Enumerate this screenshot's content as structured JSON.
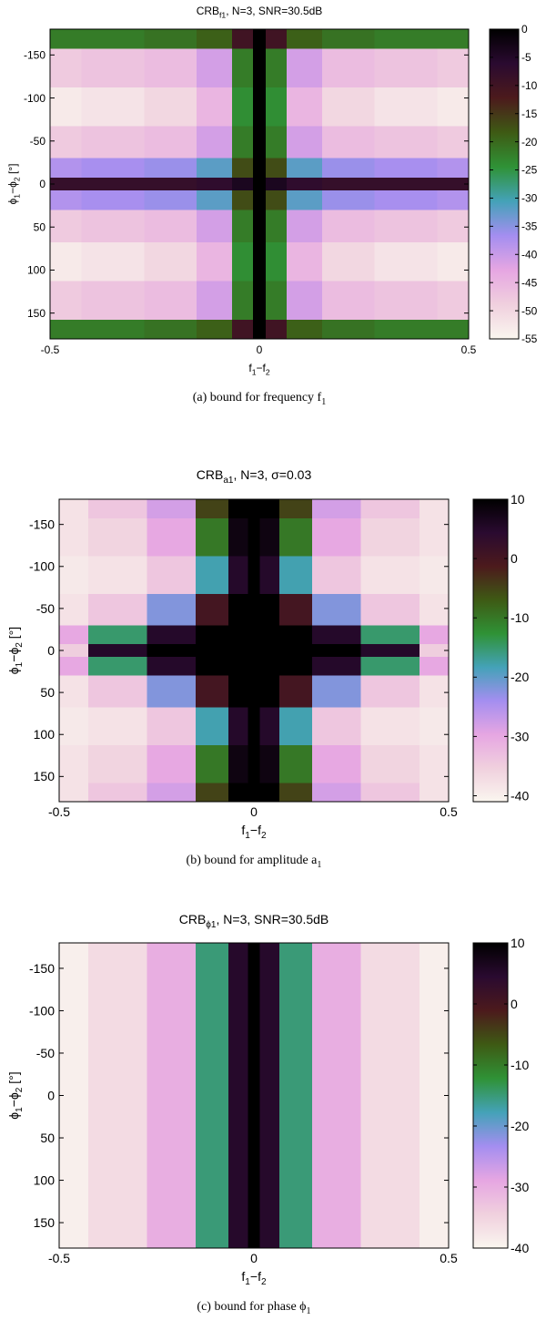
{
  "chart_data": [
    {
      "type": "heatmap",
      "title": [
        "CRB",
        "f1",
        ", N=3, SNR=30.5dB"
      ],
      "xlabel": [
        "f",
        "1",
        "−f",
        "2"
      ],
      "ylabel": [
        "ϕ",
        "1",
        "−ϕ",
        "2",
        " [°]"
      ],
      "caption": [
        "(a) bound for frequency f",
        "1"
      ],
      "x": [
        -0.5,
        -0.35,
        -0.2,
        -0.1,
        -0.03,
        0,
        0.03,
        0.1,
        0.2,
        0.35,
        0.5
      ],
      "y": [
        -180,
        -135,
        -90,
        -45,
        -15,
        0,
        15,
        45,
        90,
        135,
        180
      ],
      "z": [
        [
          -22,
          -22,
          -21,
          -19,
          -10,
          0,
          -10,
          -19,
          -21,
          -22,
          -22
        ],
        [
          -48,
          -47,
          -46,
          -41,
          -22,
          0,
          -22,
          -41,
          -46,
          -47,
          -48
        ],
        [
          -53,
          -52,
          -50,
          -45,
          -24,
          0,
          -24,
          -45,
          -50,
          -52,
          -53
        ],
        [
          -48,
          -47,
          -46,
          -41,
          -22,
          0,
          -22,
          -41,
          -46,
          -47,
          -48
        ],
        [
          -38,
          -37,
          -36,
          -32,
          -17,
          0,
          -17,
          -32,
          -36,
          -37,
          -38
        ],
        [
          -8,
          -8,
          -8,
          -7,
          -4,
          0,
          -4,
          -7,
          -8,
          -8,
          -8
        ],
        [
          -38,
          -37,
          -36,
          -32,
          -17,
          0,
          -17,
          -32,
          -36,
          -37,
          -38
        ],
        [
          -48,
          -47,
          -46,
          -41,
          -22,
          0,
          -22,
          -41,
          -46,
          -47,
          -48
        ],
        [
          -53,
          -52,
          -50,
          -45,
          -24,
          0,
          -24,
          -45,
          -50,
          -52,
          -53
        ],
        [
          -48,
          -47,
          -46,
          -41,
          -22,
          0,
          -22,
          -41,
          -46,
          -47,
          -48
        ],
        [
          -22,
          -22,
          -21,
          -19,
          -10,
          0,
          -10,
          -19,
          -21,
          -22,
          -22
        ]
      ],
      "xlim": [
        -0.5,
        0.5
      ],
      "xticks": [
        -0.5,
        0,
        0.5
      ],
      "ylim": [
        -180,
        180
      ],
      "yticks": [
        -150,
        -100,
        -50,
        0,
        50,
        100,
        150
      ],
      "y_inverted": true,
      "zlim": [
        -55,
        0
      ],
      "zticks": [
        0,
        -5,
        -10,
        -15,
        -20,
        -25,
        -30,
        -35,
        -40,
        -45,
        -50,
        -55
      ],
      "colormap": [
        "#faf6ef",
        "#f0d0de",
        "#e6a6e2",
        "#a48ef0",
        "#44a2b8",
        "#2f9236",
        "#3e5a14",
        "#4c1a1c",
        "#2a0a30",
        "#000000"
      ]
    },
    {
      "type": "heatmap",
      "title": [
        "CRB",
        "a1",
        ", N=3, σ=0.03"
      ],
      "xlabel": [
        "f",
        "1",
        "−f",
        "2"
      ],
      "ylabel": [
        "ϕ",
        "1",
        "−ϕ",
        "2",
        " [°]"
      ],
      "caption": [
        "(b) bound for amplitude a",
        "1"
      ],
      "x": [
        -0.5,
        -0.35,
        -0.2,
        -0.1,
        -0.03,
        0,
        0.03,
        0.1,
        0.2,
        0.35,
        0.5
      ],
      "y": [
        -180,
        -135,
        -90,
        -45,
        -15,
        0,
        15,
        45,
        90,
        135,
        180
      ],
      "z": [
        [
          -38,
          -34,
          -28,
          -5,
          10,
          10,
          10,
          -5,
          -28,
          -34,
          -38
        ],
        [
          -38,
          -36,
          -30,
          -10,
          8,
          10,
          8,
          -10,
          -30,
          -36,
          -38
        ],
        [
          -39,
          -38,
          -34,
          -18,
          5,
          10,
          5,
          -18,
          -34,
          -38,
          -39
        ],
        [
          -38,
          -34,
          -22,
          0,
          10,
          10,
          10,
          0,
          -22,
          -34,
          -38
        ],
        [
          -30,
          -15,
          5,
          10,
          10,
          10,
          10,
          10,
          5,
          -15,
          -30
        ],
        [
          -35,
          5,
          10,
          10,
          10,
          10,
          10,
          10,
          10,
          5,
          -35
        ],
        [
          -30,
          -15,
          5,
          10,
          10,
          10,
          10,
          10,
          5,
          -15,
          -30
        ],
        [
          -38,
          -34,
          -22,
          0,
          10,
          10,
          10,
          0,
          -22,
          -34,
          -38
        ],
        [
          -39,
          -38,
          -34,
          -18,
          5,
          10,
          5,
          -18,
          -34,
          -38,
          -39
        ],
        [
          -38,
          -36,
          -30,
          -10,
          8,
          10,
          8,
          -10,
          -30,
          -36,
          -38
        ],
        [
          -38,
          -34,
          -28,
          -5,
          10,
          10,
          10,
          -5,
          -28,
          -34,
          -38
        ]
      ],
      "xlim": [
        -0.5,
        0.5
      ],
      "xticks": [
        -0.5,
        0,
        0.5
      ],
      "ylim": [
        -180,
        180
      ],
      "yticks": [
        -150,
        -100,
        -50,
        0,
        50,
        100,
        150
      ],
      "y_inverted": true,
      "zlim": [
        -41,
        10
      ],
      "zticks": [
        10,
        0,
        -10,
        -20,
        -30,
        -40
      ],
      "colormap": [
        "#faf6ef",
        "#f0d0de",
        "#e6a6e2",
        "#a48ef0",
        "#44a2b8",
        "#2f9236",
        "#3e5a14",
        "#4c1a1c",
        "#2a0a30",
        "#000000"
      ]
    },
    {
      "type": "heatmap",
      "title": [
        "CRB",
        "ϕ1",
        ", N=3, SNR=30.5dB"
      ],
      "xlabel": [
        "f",
        "1",
        "−f",
        "2"
      ],
      "ylabel": [
        "ϕ",
        "1",
        "−ϕ",
        "2",
        " [°]"
      ],
      "caption": [
        "(c) bound for phase ϕ",
        "1"
      ],
      "x": [
        -0.5,
        -0.35,
        -0.2,
        -0.1,
        -0.03,
        0,
        0.03,
        0.1,
        0.2,
        0.35,
        0.5
      ],
      "y": [
        -180,
        -135,
        -90,
        -45,
        -15,
        0,
        15,
        45,
        90,
        135,
        180
      ],
      "z": [
        [
          -39,
          -36,
          -30,
          -15,
          5,
          10,
          5,
          -15,
          -30,
          -36,
          -39
        ],
        [
          -39,
          -36,
          -30,
          -15,
          5,
          10,
          5,
          -15,
          -30,
          -36,
          -39
        ],
        [
          -39,
          -36,
          -30,
          -15,
          5,
          10,
          5,
          -15,
          -30,
          -36,
          -39
        ],
        [
          -39,
          -36,
          -30,
          -15,
          5,
          10,
          5,
          -15,
          -30,
          -36,
          -39
        ],
        [
          -39,
          -36,
          -30,
          -15,
          5,
          10,
          5,
          -15,
          -30,
          -36,
          -39
        ],
        [
          -39,
          -36,
          -30,
          -15,
          5,
          10,
          5,
          -15,
          -30,
          -36,
          -39
        ],
        [
          -39,
          -36,
          -30,
          -15,
          5,
          10,
          5,
          -15,
          -30,
          -36,
          -39
        ],
        [
          -39,
          -36,
          -30,
          -15,
          5,
          10,
          5,
          -15,
          -30,
          -36,
          -39
        ],
        [
          -39,
          -36,
          -30,
          -15,
          5,
          10,
          5,
          -15,
          -30,
          -36,
          -39
        ],
        [
          -39,
          -36,
          -30,
          -15,
          5,
          10,
          5,
          -15,
          -30,
          -36,
          -39
        ],
        [
          -39,
          -36,
          -30,
          -15,
          5,
          10,
          5,
          -15,
          -30,
          -36,
          -39
        ]
      ],
      "xlim": [
        -0.5,
        0.5
      ],
      "xticks": [
        -0.5,
        0,
        0.5
      ],
      "ylim": [
        -180,
        180
      ],
      "yticks": [
        -150,
        -100,
        -50,
        0,
        50,
        100,
        150
      ],
      "y_inverted": true,
      "zlim": [
        -40,
        10
      ],
      "zticks": [
        10,
        0,
        -10,
        -20,
        -30,
        -40
      ],
      "colormap": [
        "#faf6ef",
        "#f0d0de",
        "#e6a6e2",
        "#a48ef0",
        "#44a2b8",
        "#2f9236",
        "#3e5a14",
        "#4c1a1c",
        "#2a0a30",
        "#000000"
      ]
    }
  ]
}
